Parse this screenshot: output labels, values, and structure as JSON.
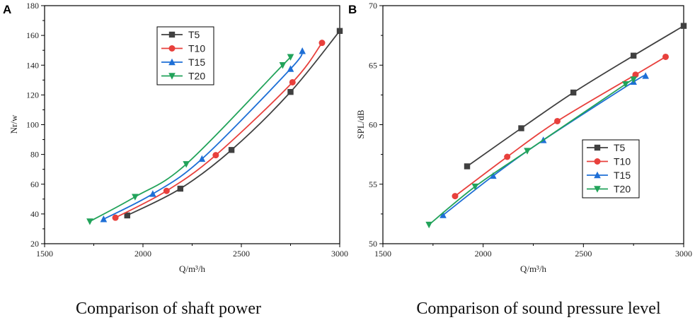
{
  "chart_data": [
    {
      "panel_label": "A",
      "type": "line",
      "caption": "Comparison of shaft power",
      "xlabel": "Q/m³/h",
      "ylabel": "Nr/w",
      "xlim": [
        1500,
        3000
      ],
      "ylim": [
        20,
        180
      ],
      "xticks": [
        1500,
        2000,
        2500,
        3000
      ],
      "yticks": [
        20,
        40,
        60,
        80,
        100,
        120,
        140,
        160,
        180
      ],
      "legend_position": "top-center",
      "series": [
        {
          "name": "T5",
          "color": "#404040",
          "marker": "square",
          "x": [
            1920,
            2190,
            2450,
            2750,
            3000
          ],
          "y": [
            39,
            57,
            83,
            122,
            163
          ]
        },
        {
          "name": "T10",
          "color": "#e8403c",
          "marker": "circle",
          "x": [
            1860,
            2120,
            2370,
            2760,
            2910
          ],
          "y": [
            37.5,
            55.5,
            79.5,
            128.5,
            155
          ]
        },
        {
          "name": "T15",
          "color": "#1e6fd6",
          "marker": "triangle-up",
          "x": [
            1800,
            2050,
            2300,
            2750,
            2810
          ],
          "y": [
            36.5,
            53.5,
            77,
            137.5,
            149.5
          ]
        },
        {
          "name": "T20",
          "color": "#22a35a",
          "marker": "triangle-down",
          "x": [
            1730,
            1960,
            2220,
            2710,
            2750
          ],
          "y": [
            35,
            51.5,
            73.5,
            140,
            145.5
          ]
        }
      ]
    },
    {
      "panel_label": "B",
      "type": "line",
      "caption": "Comparison of sound pressure level",
      "xlabel": "Q/m³/h",
      "ylabel": "SPL/dB",
      "xlim": [
        1500,
        3000
      ],
      "ylim": [
        50,
        70
      ],
      "xticks": [
        1500,
        2000,
        2500,
        3000
      ],
      "yticks": [
        50,
        55,
        60,
        65,
        70
      ],
      "legend_position": "center-left",
      "series": [
        {
          "name": "T5",
          "color": "#404040",
          "marker": "square",
          "x": [
            1920,
            2190,
            2450,
            2750,
            3000
          ],
          "y": [
            56.5,
            59.7,
            62.7,
            65.8,
            68.3
          ]
        },
        {
          "name": "T10",
          "color": "#e8403c",
          "marker": "circle",
          "x": [
            1860,
            2120,
            2370,
            2760,
            2910
          ],
          "y": [
            54,
            57.3,
            60.3,
            64.2,
            65.7
          ]
        },
        {
          "name": "T15",
          "color": "#1e6fd6",
          "marker": "triangle-up",
          "x": [
            1800,
            2050,
            2300,
            2750,
            2810
          ],
          "y": [
            52.4,
            55.7,
            58.7,
            63.6,
            64.1
          ]
        },
        {
          "name": "T20",
          "color": "#22a35a",
          "marker": "triangle-down",
          "x": [
            1730,
            1960,
            2220,
            2710,
            2750
          ],
          "y": [
            51.6,
            54.8,
            57.8,
            63.4,
            63.8
          ]
        }
      ]
    }
  ]
}
